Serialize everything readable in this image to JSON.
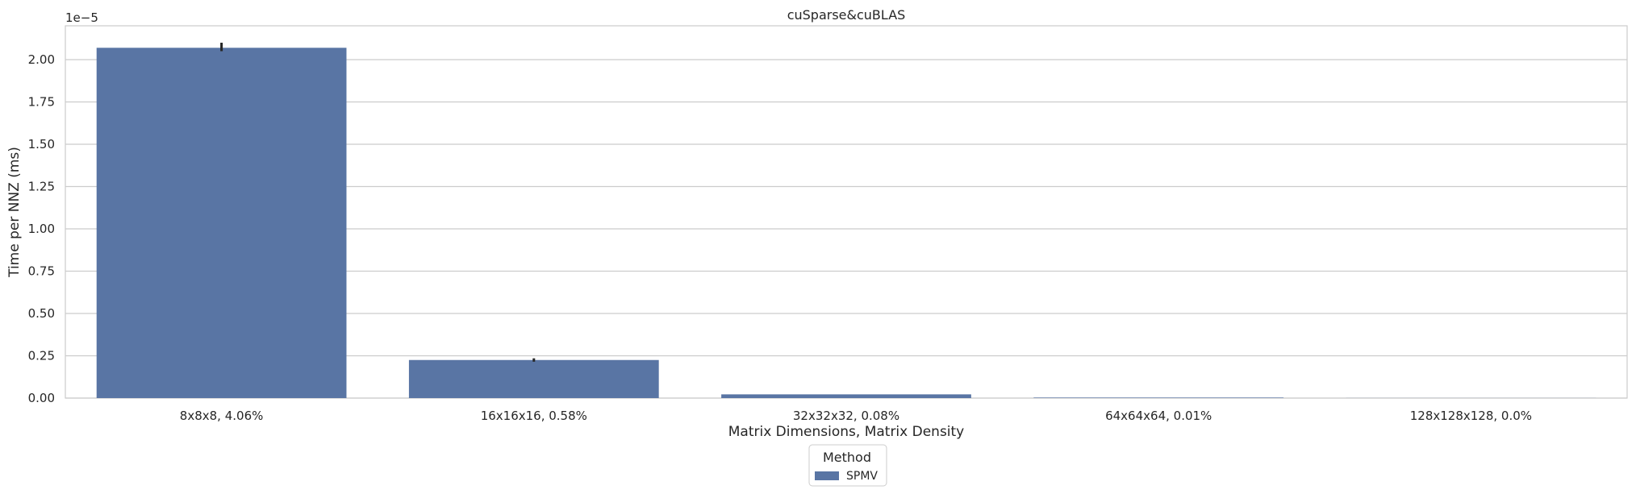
{
  "chart_data": {
    "type": "bar",
    "title": "cuSparse&cuBLAS",
    "xlabel": "Matrix Dimensions, Matrix Density",
    "ylabel": "Time per NNZ (ms)",
    "y_offset_label": "1e−5",
    "y_scale_exponent": -5,
    "categories": [
      "8x8x8, 4.06%",
      "16x16x16, 0.58%",
      "32x32x32, 0.08%",
      "64x64x64, 0.01%",
      "128x128x128, 0.0%"
    ],
    "ylim": [
      0,
      2.2
    ],
    "yticks": [
      0.0,
      0.25,
      0.5,
      0.75,
      1.0,
      1.25,
      1.5,
      1.75,
      2.0
    ],
    "ytick_labels": [
      "0.00",
      "0.25",
      "0.50",
      "0.75",
      "1.00",
      "1.25",
      "1.50",
      "1.75",
      "2.00"
    ],
    "grid": true,
    "legend": {
      "title": "Method",
      "placement": "below-center"
    },
    "series": [
      {
        "name": "SPMV",
        "color": "#5975a4",
        "values": [
          2.07,
          0.225,
          0.022,
          0.003,
          0.0004
        ],
        "error_bars": [
          [
            2.05,
            2.1
          ],
          [
            0.215,
            0.235
          ],
          [
            null,
            null
          ],
          [
            null,
            null
          ],
          [
            null,
            null
          ]
        ]
      }
    ]
  }
}
